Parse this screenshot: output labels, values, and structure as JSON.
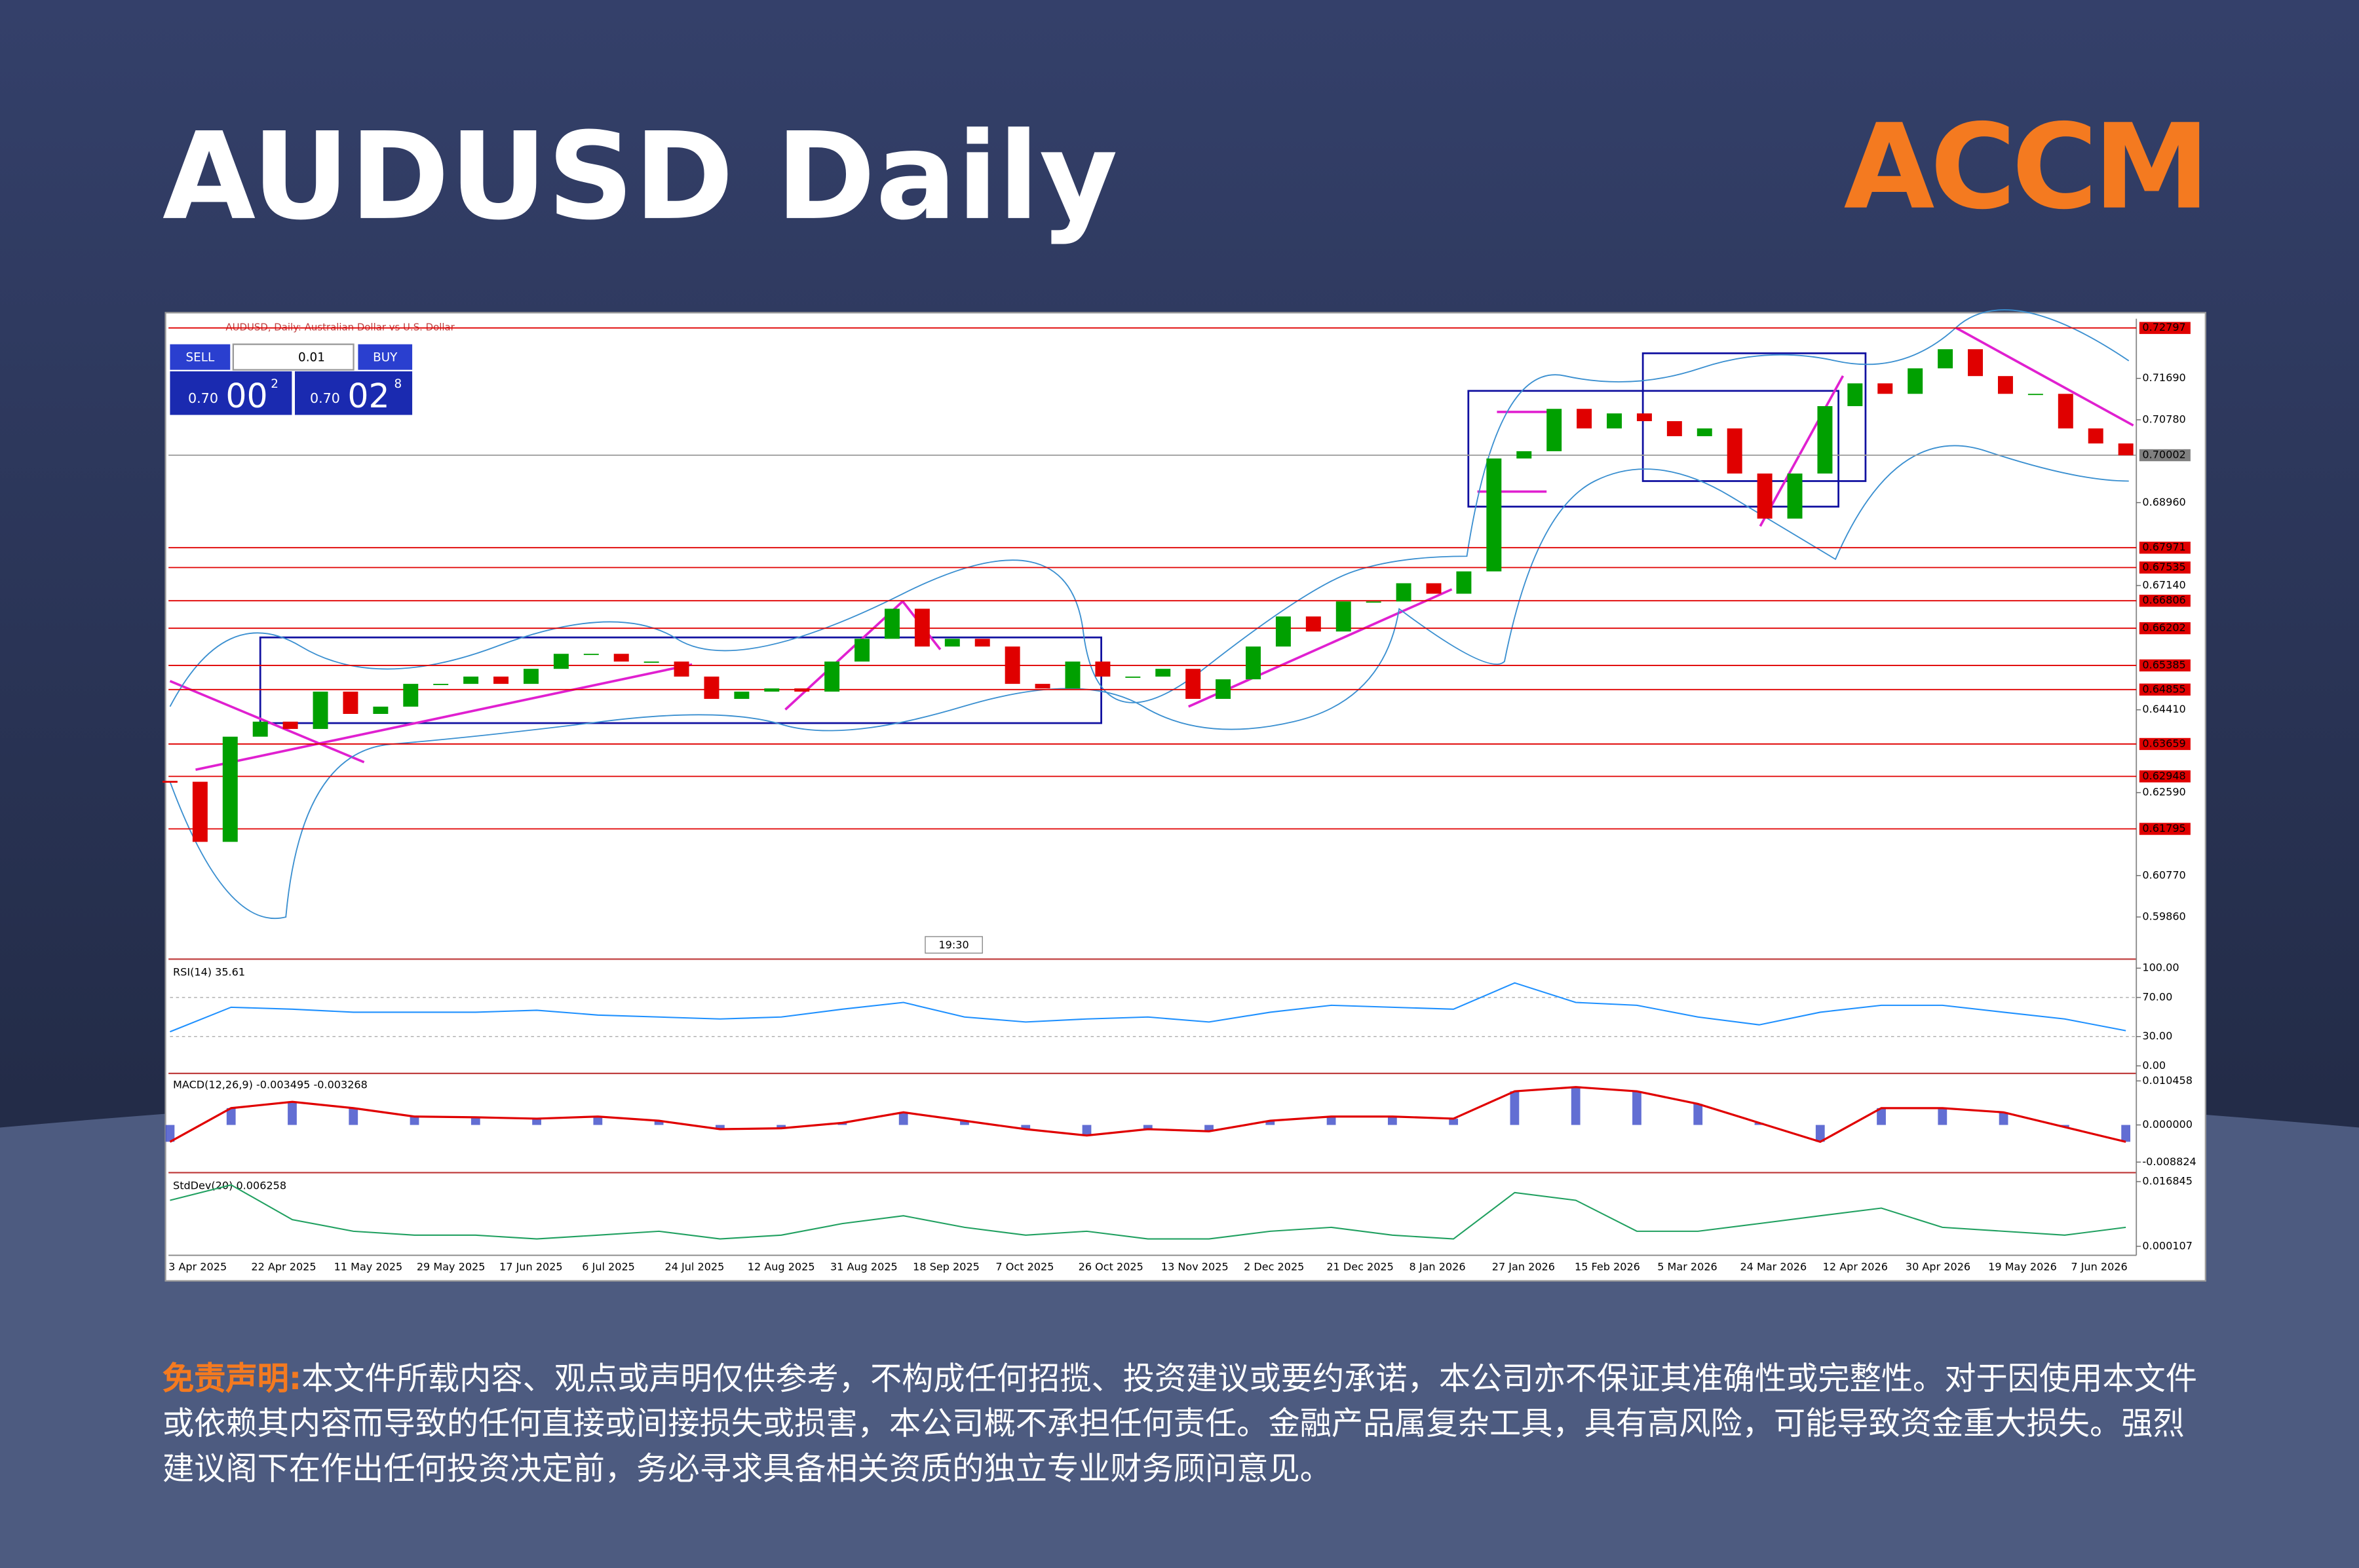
{
  "title": "AUDUSD Daily",
  "logo": "ACCM",
  "terminal": {
    "symbol_label": "AUDUSD, Daily:  Australian Dollar vs U.S. Dollar",
    "sell": "SELL",
    "buy": "BUY",
    "volume": "0.01",
    "bid": {
      "prefix": "0.70",
      "big": "00",
      "small": "2"
    },
    "ask": {
      "prefix": "0.70",
      "big": "02",
      "small": "8"
    },
    "time_marker": "19:30"
  },
  "chart_data": [
    {
      "type": "candlestick",
      "color_up": "#00a000",
      "color_down": "#e00000",
      "values": [
        0.6283,
        0.6151,
        0.6382,
        0.6415,
        0.6399,
        0.6481,
        0.6432,
        0.6448,
        0.6498,
        0.6498,
        0.6514,
        0.6498,
        0.6531,
        0.6564,
        0.6564,
        0.6547,
        0.6547,
        0.6514,
        0.6465,
        0.6481,
        0.6488,
        0.6481,
        0.6547,
        0.6597,
        0.6663,
        0.658,
        0.6597,
        0.658,
        0.6498,
        0.6488,
        0.6547,
        0.6514,
        0.6514,
        0.6531,
        0.6465,
        0.6508,
        0.658,
        0.6646,
        0.6613,
        0.6679,
        0.6679,
        0.6719,
        0.6696,
        0.6745,
        0.6993,
        0.7009,
        0.7102,
        0.7059,
        0.7092,
        0.7075,
        0.7042,
        0.7059,
        0.696,
        0.6861,
        0.696,
        0.7108,
        0.7158,
        0.7135,
        0.7191,
        0.7233,
        0.7174,
        0.7135,
        0.7135,
        0.7059,
        0.7026,
        0.7
      ],
      "ylim": [
        0.59,
        0.73
      ],
      "yticks": [
        {
          "value": 0.7169,
          "label": "0.71690"
        },
        {
          "value": 0.7078,
          "label": "0.70780"
        },
        {
          "value": 0.6896,
          "label": "0.68960"
        },
        {
          "value": 0.6714,
          "label": "0.67140"
        },
        {
          "value": 0.6441,
          "label": "0.64410"
        },
        {
          "value": 0.6259,
          "label": "0.62590"
        },
        {
          "value": 0.6077,
          "label": "0.60770"
        },
        {
          "value": 0.5986,
          "label": "0.59860"
        }
      ],
      "levels": [
        {
          "value": 0.72797,
          "label": "0.72797"
        },
        {
          "value": 0.67971,
          "label": "0.67971"
        },
        {
          "value": 0.67535,
          "label": "0.67535"
        },
        {
          "value": 0.66806,
          "label": "0.66806"
        },
        {
          "value": 0.66202,
          "label": "0.66202"
        },
        {
          "value": 0.65385,
          "label": "0.65385"
        },
        {
          "value": 0.64855,
          "label": "0.64855"
        },
        {
          "value": 0.63659,
          "label": "0.63659"
        },
        {
          "value": 0.62948,
          "label": "0.62948"
        },
        {
          "value": 0.61795,
          "label": "0.61795"
        }
      ],
      "level_color": "#e00000",
      "current": {
        "value": 0.70002,
        "label": "0.70002"
      },
      "date_labels": [
        "3 Apr 2025",
        "22 Apr 2025",
        "11 May 2025",
        "29 May 2025",
        "17 Jun 2025",
        "6 Jul 2025",
        "24 Jul 2025",
        "12 Aug 2025",
        "31 Aug 2025",
        "18 Sep 2025",
        "7 Oct 2025",
        "26 Oct 2025",
        "13 Nov 2025",
        "2 Dec 2025",
        "21 Dec 2025",
        "8 Jan 2026",
        "27 Jan 2026",
        "15 Feb 2026",
        "5 Mar 2026",
        "24 Mar 2026",
        "12 Apr 2026",
        "30 Apr 2026",
        "19 May 2026",
        "7 Jun 2026"
      ]
    },
    {
      "type": "line",
      "title": "RSI(14) 35.61",
      "color": "#1e90ff",
      "values": [
        35,
        60,
        58,
        55,
        55,
        55,
        57,
        52,
        50,
        48,
        50,
        58,
        65,
        50,
        45,
        48,
        50,
        45,
        55,
        62,
        60,
        58,
        85,
        65,
        62,
        50,
        42,
        55,
        62,
        62,
        55,
        48,
        36
      ],
      "ylim": [
        0,
        100
      ],
      "yticks": [
        {
          "value": 100,
          "label": "100.00"
        },
        {
          "value": 70,
          "label": "70.00"
        },
        {
          "value": 30,
          "label": "30.00"
        },
        {
          "value": 0,
          "label": "0.00"
        }
      ]
    },
    {
      "type": "macd",
      "title": "MACD(12,26,9) -0.003495 -0.003268",
      "color": "#e00000",
      "bar_color": "#2030c0",
      "values": [
        -0.004,
        0.004,
        0.0055,
        0.004,
        0.002,
        0.0018,
        0.0015,
        0.002,
        0.001,
        -0.001,
        -0.0008,
        0.0005,
        0.003,
        0.001,
        -0.001,
        -0.0025,
        -0.001,
        -0.0015,
        0.001,
        0.002,
        0.002,
        0.0015,
        0.008,
        0.009,
        0.008,
        0.005,
        0.0005,
        -0.004,
        0.004,
        0.004,
        0.003,
        -0.0005,
        -0.004
      ],
      "ylim": [
        -0.008824,
        0.010458
      ],
      "yticks": [
        {
          "value": 0.010458,
          "label": "0.010458"
        },
        {
          "value": 0,
          "label": "0.000000"
        },
        {
          "value": -0.008824,
          "label": "-0.008824"
        }
      ]
    },
    {
      "type": "line",
      "title": "StdDev(20) 0.006258",
      "color": "#20a060",
      "values": [
        0.012,
        0.016,
        0.007,
        0.004,
        0.003,
        0.003,
        0.002,
        0.003,
        0.004,
        0.002,
        0.003,
        0.006,
        0.008,
        0.005,
        0.003,
        0.004,
        0.002,
        0.002,
        0.004,
        0.005,
        0.003,
        0.002,
        0.014,
        0.012,
        0.004,
        0.004,
        0.006,
        0.008,
        0.01,
        0.005,
        0.004,
        0.003,
        0.005
      ],
      "ylim": [
        0.000107,
        0.016845
      ],
      "yticks": [
        {
          "value": 0.016845,
          "label": "0.016845"
        },
        {
          "value": 0.000107,
          "label": "0.000107"
        }
      ]
    }
  ],
  "disclaimer": {
    "label": "免责声明:",
    "text": "本文件所载内容、观点或声明仅供参考，不构成任何招揽、投资建议或要约承诺，本公司亦不保证其准确性或完整性。对于因使用本文件或依赖其内容而导致的任何直接或间接损失或损害，本公司概不承担任何责任。金融产品属复杂工具，具有高风险，可能导致资金重大损失。强烈建议阁下在作出任何投资决定前，务必寻求具备相关资质的独立专业财务顾问意见。"
  }
}
